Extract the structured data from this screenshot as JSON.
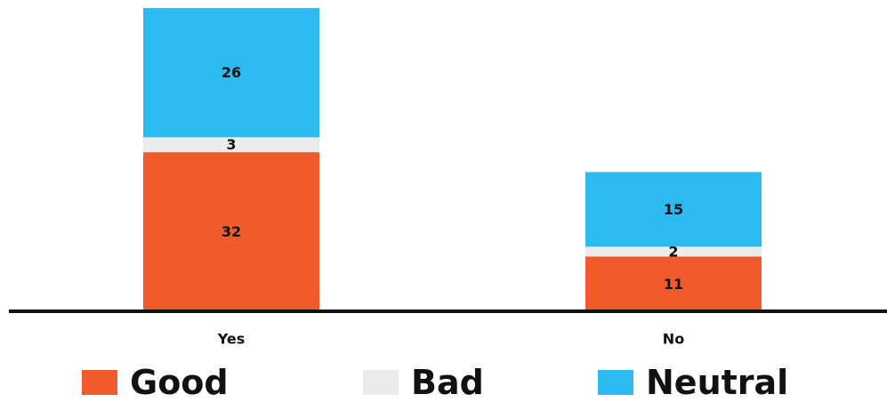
{
  "chart_data": {
    "type": "bar",
    "stacked": true,
    "categories": [
      "Yes",
      "No"
    ],
    "series": [
      {
        "name": "Good",
        "values": [
          32,
          11
        ],
        "color": "#F15A2B"
      },
      {
        "name": "Bad",
        "values": [
          3,
          2
        ],
        "color": "#ECECEC"
      },
      {
        "name": "Neutral",
        "values": [
          26,
          15
        ],
        "color": "#2BBBF0"
      }
    ],
    "ylim": [
      0,
      61
    ],
    "grid": false,
    "legend_position": "bottom"
  }
}
